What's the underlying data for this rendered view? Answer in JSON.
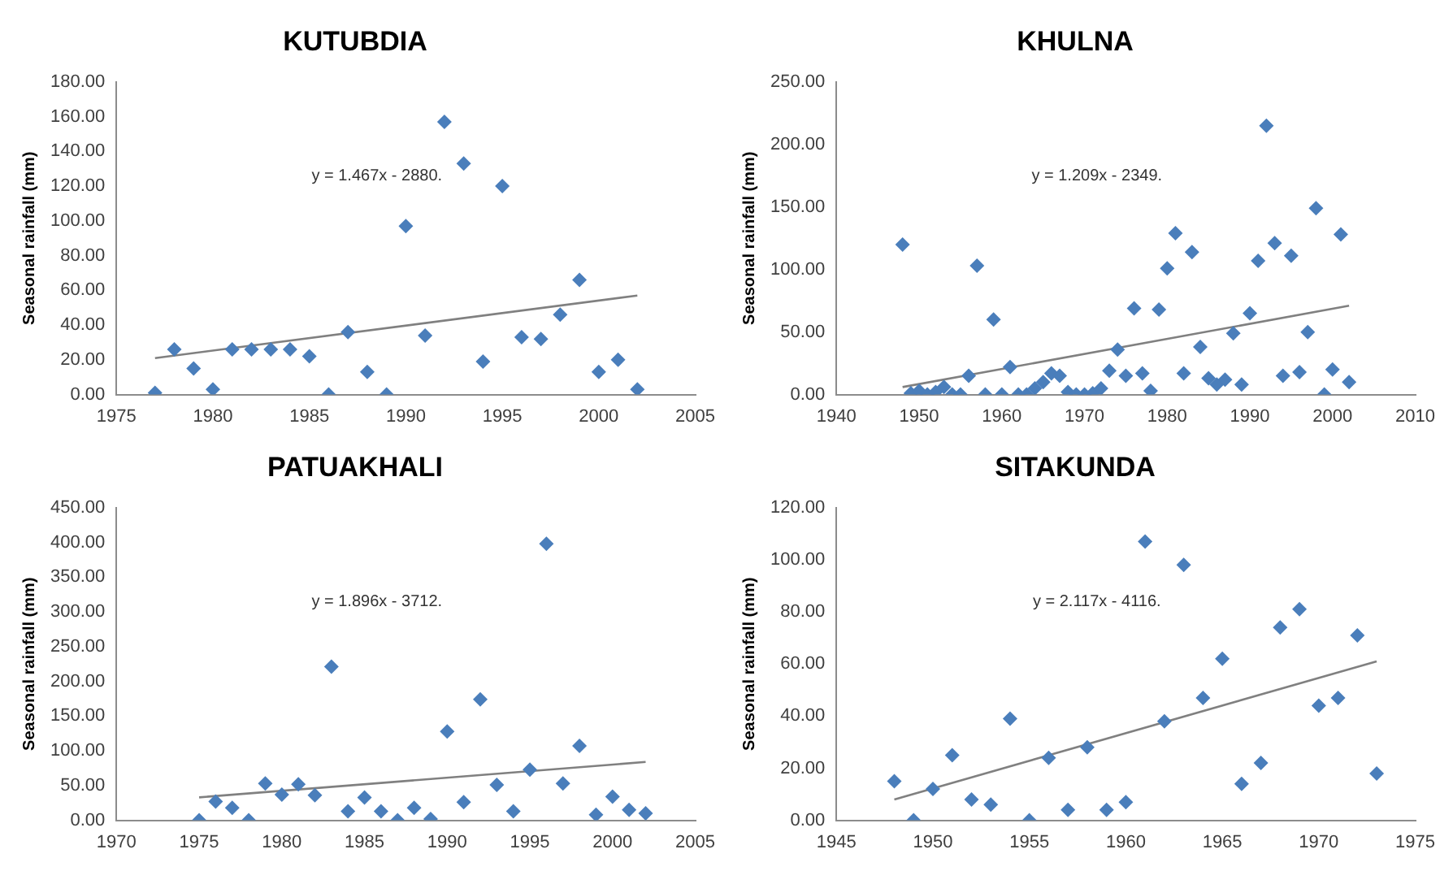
{
  "chart_data": [
    {
      "type": "scatter",
      "title": "KUTUBDIA",
      "ylabel": "Seasonal rainfall (mm)",
      "annotations": [
        "y = 1.467x - 2880."
      ],
      "grid": false,
      "legend": false,
      "marker": "diamond",
      "xlim": [
        1975,
        2005
      ],
      "xticks": [
        1975,
        1980,
        1985,
        1990,
        1995,
        2000,
        2005
      ],
      "ylim": [
        0,
        180
      ],
      "yticks": [
        {
          "value": 0,
          "label": "0.00"
        },
        {
          "value": 20,
          "label": "20.00"
        },
        {
          "value": 40,
          "label": "40.00"
        },
        {
          "value": 60,
          "label": "60.00"
        },
        {
          "value": 80,
          "label": "80.00"
        },
        {
          "value": 100,
          "label": "100.00"
        },
        {
          "value": 120,
          "label": "120.00"
        },
        {
          "value": 140,
          "label": "140.00"
        },
        {
          "value": 160,
          "label": "160.00"
        },
        {
          "value": 180,
          "label": "180.00"
        }
      ],
      "series": [
        {
          "type": "scatter",
          "color": "#4a7ebb",
          "x": [
            1977,
            1978,
            1979,
            1980,
            1981,
            1982,
            1983,
            1984,
            1985,
            1986,
            1987,
            1988,
            1989,
            1990,
            1991,
            1992,
            1993,
            1994,
            1995,
            1996,
            1997,
            1998,
            1999,
            2000,
            2001,
            2002
          ],
          "values": [
            1,
            26,
            15,
            3,
            26,
            26,
            26,
            26,
            22,
            0,
            36,
            13,
            0,
            97,
            34,
            157,
            133,
            19,
            120,
            33,
            32,
            46,
            66,
            13,
            20,
            3
          ]
        },
        {
          "type": "line",
          "color": "#808080",
          "marker": "none",
          "x": [
            1977,
            2002
          ],
          "values": [
            21,
            57
          ]
        }
      ]
    },
    {
      "type": "scatter",
      "title": "KHULNA",
      "ylabel": "Seasonal rainfall (mm)",
      "annotations": [
        "y = 1.209x - 2349."
      ],
      "grid": false,
      "legend": false,
      "marker": "diamond",
      "xlim": [
        1940,
        2010
      ],
      "xticks": [
        1940,
        1950,
        1960,
        1970,
        1980,
        1990,
        2000,
        2010
      ],
      "ylim": [
        0,
        250
      ],
      "yticks": [
        {
          "value": 0,
          "label": "0.00"
        },
        {
          "value": 50,
          "label": "50.00"
        },
        {
          "value": 100,
          "label": "100.00"
        },
        {
          "value": 150,
          "label": "150.00"
        },
        {
          "value": 200,
          "label": "200.00"
        },
        {
          "value": 250,
          "label": "250.00"
        }
      ],
      "series": [
        {
          "type": "scatter",
          "color": "#4a7ebb",
          "x": [
            1948,
            1949,
            1950,
            1951,
            1952,
            1953,
            1954,
            1955,
            1956,
            1957,
            1958,
            1959,
            1960,
            1961,
            1962,
            1963,
            1964,
            1965,
            1966,
            1967,
            1968,
            1969,
            1970,
            1971,
            1972,
            1973,
            1974,
            1975,
            1976,
            1977,
            1978,
            1979,
            1980,
            1981,
            1982,
            1983,
            1984,
            1985,
            1986,
            1987,
            1988,
            1989,
            1990,
            1991,
            1992,
            1993,
            1994,
            1995,
            1996,
            1997,
            1998,
            1999,
            2000,
            2001,
            2002
          ],
          "values": [
            120,
            1,
            3,
            0,
            2,
            6,
            0,
            0,
            15,
            103,
            0,
            60,
            0,
            22,
            0,
            0,
            5,
            10,
            17,
            15,
            2,
            0,
            0,
            1,
            5,
            19,
            36,
            15,
            69,
            17,
            3,
            68,
            101,
            129,
            17,
            114,
            38,
            13,
            8,
            12,
            49,
            8,
            65,
            107,
            215,
            121,
            15,
            111,
            18,
            50,
            149,
            0,
            20,
            128,
            10
          ]
        },
        {
          "type": "line",
          "color": "#808080",
          "marker": "none",
          "x": [
            1948,
            2002
          ],
          "values": [
            6,
            71
          ]
        }
      ]
    },
    {
      "type": "scatter",
      "title": "PATUAKHALI",
      "ylabel": "Seasonal rainfall (mm)",
      "annotations": [
        "y = 1.896x - 3712."
      ],
      "grid": false,
      "legend": false,
      "marker": "diamond",
      "xlim": [
        1970,
        2005
      ],
      "xticks": [
        1970,
        1975,
        1980,
        1985,
        1990,
        1995,
        2000,
        2005
      ],
      "ylim": [
        0,
        450
      ],
      "yticks": [
        {
          "value": 0,
          "label": "0.00"
        },
        {
          "value": 50,
          "label": "50.00"
        },
        {
          "value": 100,
          "label": "100.00"
        },
        {
          "value": 150,
          "label": "150.00"
        },
        {
          "value": 200,
          "label": "200.00"
        },
        {
          "value": 250,
          "label": "250.00"
        },
        {
          "value": 300,
          "label": "300.00"
        },
        {
          "value": 350,
          "label": "350.00"
        },
        {
          "value": 400,
          "label": "400.00"
        },
        {
          "value": 450,
          "label": "450.00"
        }
      ],
      "series": [
        {
          "type": "scatter",
          "color": "#4a7ebb",
          "x": [
            1975,
            1976,
            1977,
            1978,
            1979,
            1980,
            1981,
            1982,
            1983,
            1984,
            1985,
            1986,
            1987,
            1988,
            1989,
            1990,
            1991,
            1992,
            1993,
            1994,
            1995,
            1996,
            1997,
            1998,
            1999,
            2000,
            2001,
            2002
          ],
          "values": [
            0,
            27,
            18,
            0,
            53,
            37,
            52,
            36,
            221,
            13,
            33,
            13,
            0,
            18,
            2,
            128,
            26,
            174,
            51,
            13,
            73,
            398,
            53,
            107,
            8,
            34,
            15,
            10
          ]
        },
        {
          "type": "line",
          "color": "#808080",
          "marker": "none",
          "x": [
            1975,
            2002
          ],
          "values": [
            33,
            84
          ]
        }
      ]
    },
    {
      "type": "scatter",
      "title": "SITAKUNDA",
      "ylabel": "Seasonal rainfall (mm)",
      "annotations": [
        "y = 2.117x - 4116."
      ],
      "grid": false,
      "legend": false,
      "marker": "diamond",
      "xlim": [
        1945,
        1975
      ],
      "xticks": [
        1945,
        1950,
        1955,
        1960,
        1965,
        1970,
        1975
      ],
      "ylim": [
        0,
        120
      ],
      "yticks": [
        {
          "value": 0,
          "label": "0.00"
        },
        {
          "value": 20,
          "label": "20.00"
        },
        {
          "value": 40,
          "label": "40.00"
        },
        {
          "value": 60,
          "label": "60.00"
        },
        {
          "value": 80,
          "label": "80.00"
        },
        {
          "value": 100,
          "label": "100.00"
        },
        {
          "value": 120,
          "label": "120.00"
        }
      ],
      "series": [
        {
          "type": "scatter",
          "color": "#4a7ebb",
          "x": [
            1948,
            1949,
            1950,
            1951,
            1952,
            1953,
            1954,
            1955,
            1956,
            1957,
            1958,
            1959,
            1960,
            1961,
            1962,
            1963,
            1964,
            1965,
            1966,
            1967,
            1968,
            1969,
            1970,
            1971,
            1972,
            1973
          ],
          "values": [
            15,
            0,
            12,
            25,
            8,
            6,
            39,
            0,
            24,
            4,
            28,
            4,
            7,
            107,
            38,
            98,
            47,
            62,
            14,
            22,
            74,
            81,
            44,
            47,
            71,
            18
          ]
        },
        {
          "type": "line",
          "color": "#808080",
          "marker": "none",
          "x": [
            1948,
            1973
          ],
          "values": [
            8,
            61
          ]
        }
      ]
    }
  ]
}
